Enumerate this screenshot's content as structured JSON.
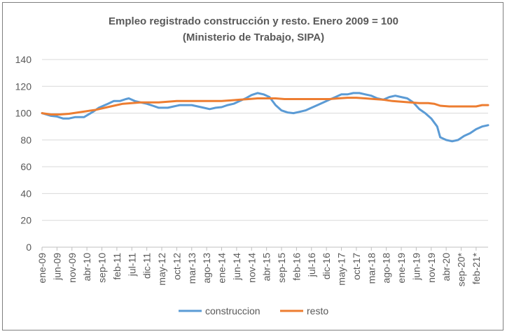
{
  "chart_data": {
    "type": "line",
    "title": "Empleo registrado construcción y resto. Enero 2009 = 100",
    "subtitle": "(Ministerio de Trabajo, SIPA)",
    "xlabel": "",
    "ylabel": "",
    "ylim": [
      0,
      140
    ],
    "yticks": [
      0,
      20,
      40,
      60,
      80,
      100,
      120,
      140
    ],
    "grid": true,
    "legend_position": "bottom",
    "x_tick_labels": [
      "ene-09",
      "jun-09",
      "nov-09",
      "abr-10",
      "sep-10",
      "feb-11",
      "jul-11",
      "dic-11",
      "may-12",
      "oct-12",
      "mar-13",
      "ago-13",
      "ene-14",
      "jun-14",
      "nov-14",
      "abr-15",
      "sep-15",
      "feb-16",
      "jul-16",
      "dic-16",
      "may-17",
      "oct-17",
      "mar-18",
      "ago-18",
      "ene-19",
      "jun-19",
      "nov-19",
      "abr-20",
      "sep-20*",
      "feb-21*"
    ],
    "tick_step_months": 5,
    "series": [
      {
        "name": "construccion",
        "color": "#5B9BD5",
        "points": [
          [
            0,
            100
          ],
          [
            3,
            98
          ],
          [
            5,
            97.5
          ],
          [
            7,
            96
          ],
          [
            9,
            96
          ],
          [
            11,
            97
          ],
          [
            14,
            97
          ],
          [
            17,
            101
          ],
          [
            19,
            104
          ],
          [
            22,
            107
          ],
          [
            24,
            109
          ],
          [
            26,
            109
          ],
          [
            28,
            110.5
          ],
          [
            29,
            111
          ],
          [
            31,
            109
          ],
          [
            33,
            108
          ],
          [
            35,
            107
          ],
          [
            37,
            105.5
          ],
          [
            39,
            104
          ],
          [
            42,
            104
          ],
          [
            44,
            105
          ],
          [
            46,
            106
          ],
          [
            48,
            106
          ],
          [
            50,
            106
          ],
          [
            52,
            105
          ],
          [
            54,
            104
          ],
          [
            56,
            103
          ],
          [
            58,
            104
          ],
          [
            60,
            104.5
          ],
          [
            62,
            106
          ],
          [
            64,
            107
          ],
          [
            66,
            109
          ],
          [
            68,
            111
          ],
          [
            70,
            113.5
          ],
          [
            72,
            115
          ],
          [
            74,
            114
          ],
          [
            76,
            112
          ],
          [
            78,
            106
          ],
          [
            80,
            102
          ],
          [
            82,
            100.5
          ],
          [
            84,
            100
          ],
          [
            86,
            101
          ],
          [
            88,
            102
          ],
          [
            90,
            104
          ],
          [
            92,
            106
          ],
          [
            94,
            108
          ],
          [
            96,
            110
          ],
          [
            98,
            112
          ],
          [
            100,
            114
          ],
          [
            102,
            114
          ],
          [
            104,
            115
          ],
          [
            106,
            115
          ],
          [
            108,
            114
          ],
          [
            110,
            113
          ],
          [
            112,
            111
          ],
          [
            114,
            110
          ],
          [
            116,
            112
          ],
          [
            118,
            113
          ],
          [
            120,
            112
          ],
          [
            122,
            111
          ],
          [
            124,
            108
          ],
          [
            126,
            103
          ],
          [
            128,
            100
          ],
          [
            130,
            96
          ],
          [
            132,
            90
          ],
          [
            133,
            82
          ],
          [
            135,
            80
          ],
          [
            137,
            79
          ],
          [
            139,
            80
          ],
          [
            141,
            83
          ],
          [
            143,
            85
          ],
          [
            145,
            88
          ],
          [
            147,
            90
          ],
          [
            149,
            91
          ]
        ]
      },
      {
        "name": "resto",
        "color": "#ED7D31",
        "points": [
          [
            0,
            100
          ],
          [
            3,
            99
          ],
          [
            6,
            99
          ],
          [
            9,
            99.5
          ],
          [
            12,
            100.5
          ],
          [
            15,
            101.5
          ],
          [
            18,
            102.5
          ],
          [
            21,
            104
          ],
          [
            24,
            105.5
          ],
          [
            27,
            107
          ],
          [
            30,
            107.5
          ],
          [
            33,
            108
          ],
          [
            36,
            108
          ],
          [
            39,
            108
          ],
          [
            42,
            108.5
          ],
          [
            45,
            109
          ],
          [
            48,
            109
          ],
          [
            51,
            109
          ],
          [
            54,
            109
          ],
          [
            57,
            109
          ],
          [
            60,
            109
          ],
          [
            63,
            109.5
          ],
          [
            66,
            110
          ],
          [
            69,
            110.5
          ],
          [
            72,
            111
          ],
          [
            75,
            111
          ],
          [
            78,
            111
          ],
          [
            81,
            110.5
          ],
          [
            84,
            110.5
          ],
          [
            87,
            110.5
          ],
          [
            90,
            110.5
          ],
          [
            93,
            110.5
          ],
          [
            96,
            110.5
          ],
          [
            99,
            111
          ],
          [
            102,
            111.5
          ],
          [
            105,
            111.5
          ],
          [
            108,
            111
          ],
          [
            111,
            110.5
          ],
          [
            114,
            110
          ],
          [
            117,
            109
          ],
          [
            120,
            108.5
          ],
          [
            123,
            108
          ],
          [
            126,
            107.5
          ],
          [
            129,
            107.5
          ],
          [
            131,
            107
          ],
          [
            133,
            105.5
          ],
          [
            136,
            105
          ],
          [
            139,
            105
          ],
          [
            142,
            105
          ],
          [
            145,
            105
          ],
          [
            147,
            106
          ],
          [
            149,
            106
          ]
        ]
      }
    ]
  }
}
